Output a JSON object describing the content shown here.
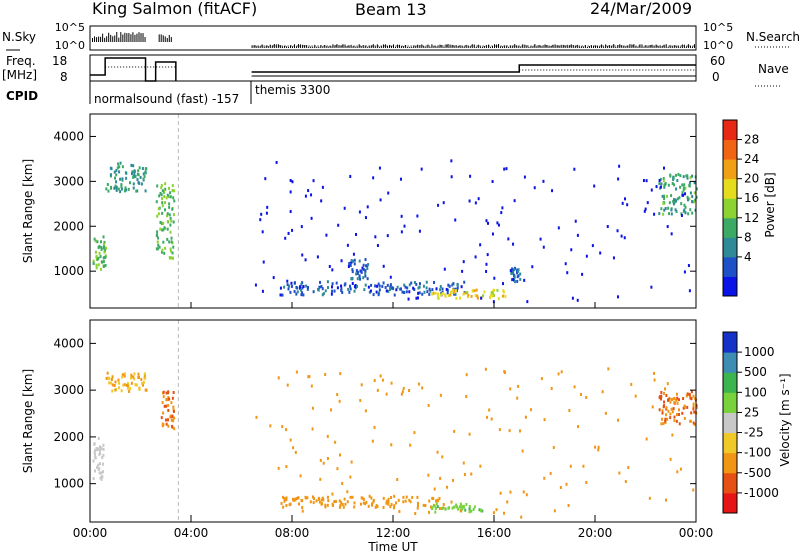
{
  "header": {
    "station": "King Salmon (fitACF)",
    "beam": "Beam 13",
    "date": "24/Mar/2009"
  },
  "noise_panel": {
    "left_label": "N.Sky",
    "right_label": "N.Search",
    "left_ticks": [
      "10^5",
      "10^0"
    ],
    "right_ticks": [
      "10^5",
      "10^0"
    ]
  },
  "freq_panel": {
    "left_label_line1": "Freq.",
    "left_label_line2": "[MHz]",
    "left_ticks": [
      "18",
      "8"
    ],
    "right_ticks": [
      "60",
      "0"
    ],
    "right_label": "Nave",
    "cpid_label": "CPID",
    "modes": [
      {
        "name": "normalsound (fast) -157"
      },
      {
        "name": "themis 3300"
      }
    ]
  },
  "axes": {
    "y_label": "Slant Range [km]",
    "y_ticks": [
      "4000",
      "3000",
      "2000",
      "1000"
    ],
    "x_label": "Time UT",
    "x_ticks": [
      "00:00",
      "04:00",
      "08:00",
      "12:00",
      "16:00",
      "20:00",
      "00:00"
    ]
  },
  "power_scale": {
    "label": "Power [dB]",
    "ticks": [
      "28",
      "24",
      "20",
      "16",
      "12",
      "8",
      "4"
    ],
    "colors": [
      "#0a14e6",
      "#1e50c8",
      "#2d8a96",
      "#3caa64",
      "#8cd232",
      "#e6dc1e",
      "#f0a014",
      "#f06414",
      "#e62814"
    ]
  },
  "velocity_scale": {
    "label": "Velocity [m s⁻¹]",
    "ticks": [
      "1000",
      "500",
      "100",
      "25",
      "-25",
      "-100",
      "-500",
      "-1000"
    ],
    "colors": [
      "#1432c8",
      "#3c8cb4",
      "#3cb450",
      "#78d23c",
      "#c8c8c8",
      "#f0c828",
      "#f09614",
      "#e65014",
      "#e61414"
    ],
    "ground_scatter": "#c8c8c8"
  },
  "chart_data": [
    {
      "type": "heatmap",
      "title": "Power",
      "xlabel": "Time UT",
      "ylabel": "Slant Range [km]",
      "xlim": [
        0,
        24
      ],
      "ylim": [
        180,
        4500
      ],
      "colorbar": {
        "label": "Power [dB]",
        "range": [
          0,
          32
        ]
      },
      "features": [
        {
          "t": [
            0.1,
            0.6
          ],
          "range_km": [
            1000,
            1800
          ],
          "power_db": 14
        },
        {
          "t": [
            0.6,
            2.2
          ],
          "range_km": [
            2800,
            3450
          ],
          "power_db": 10
        },
        {
          "t": [
            2.6,
            3.3
          ],
          "range_km": [
            1300,
            3000
          ],
          "power_db": 14
        },
        {
          "t": [
            7.5,
            15.0
          ],
          "range_km": [
            500,
            800
          ],
          "power_db": 6
        },
        {
          "t": [
            13.5,
            16.5
          ],
          "range_km": [
            420,
            620
          ],
          "power_db": 20
        },
        {
          "t": [
            10.2,
            11.0
          ],
          "range_km": [
            850,
            1300
          ],
          "power_db": 6
        },
        {
          "t": [
            16.6,
            17.0
          ],
          "range_km": [
            800,
            1100
          ],
          "power_db": 6
        },
        {
          "t": [
            22.5,
            24.0
          ],
          "range_km": [
            2300,
            3200
          ],
          "power_db": 12
        }
      ]
    },
    {
      "type": "heatmap",
      "title": "Velocity",
      "xlabel": "Time UT",
      "ylabel": "Slant Range [km]",
      "xlim": [
        0,
        24
      ],
      "ylim": [
        180,
        4500
      ],
      "colorbar": {
        "label": "Velocity [m s⁻¹]",
        "range": [
          -1000,
          1000
        ]
      },
      "features": [
        {
          "t": [
            0.1,
            0.5
          ],
          "range_km": [
            1100,
            2000
          ],
          "velocity": 0,
          "ground_scatter": true
        },
        {
          "t": [
            0.6,
            2.2
          ],
          "range_km": [
            3000,
            3400
          ],
          "velocity": -100
        },
        {
          "t": [
            2.8,
            3.3
          ],
          "range_km": [
            2200,
            3000
          ],
          "velocity": -500
        },
        {
          "t": [
            7.5,
            14.0
          ],
          "range_km": [
            500,
            750
          ],
          "velocity": -200
        },
        {
          "t": [
            13.5,
            15.5
          ],
          "range_km": [
            420,
            600
          ],
          "velocity": 80
        },
        {
          "t": [
            22.5,
            24.0
          ],
          "range_km": [
            2300,
            3000
          ],
          "velocity": -500
        }
      ]
    }
  ]
}
